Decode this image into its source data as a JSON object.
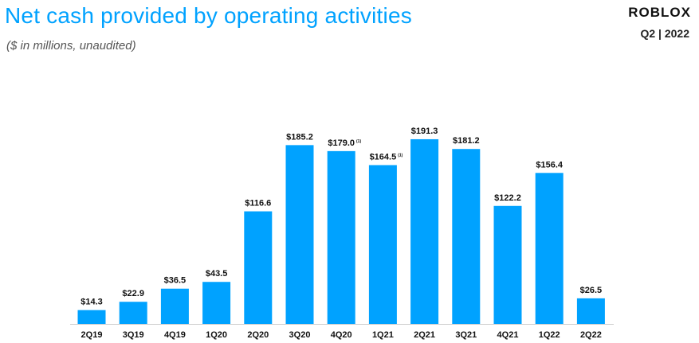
{
  "header": {
    "title": "Net cash provided by operating activities",
    "subtitle": "($ in millions,  unaudited)",
    "logo": "ROBLOX",
    "period": "Q2 | 2022"
  },
  "colors": {
    "bar": "#00a2ff",
    "title": "#00a2ff",
    "axis": "#cccccc"
  },
  "chart_data": {
    "type": "bar",
    "title": "Net cash provided by operating activities",
    "xlabel": "",
    "ylabel": "",
    "ylim": [
      0,
      200
    ],
    "grid": false,
    "categories": [
      "2Q19",
      "3Q19",
      "4Q19",
      "1Q20",
      "2Q20",
      "3Q20",
      "4Q20",
      "1Q21",
      "2Q21",
      "3Q21",
      "4Q21",
      "1Q22",
      "2Q22"
    ],
    "values": [
      14.3,
      22.9,
      36.5,
      43.5,
      116.6,
      185.2,
      179.0,
      164.5,
      191.3,
      181.2,
      122.2,
      156.4,
      26.5
    ],
    "labels": [
      "$14.3",
      "$22.9",
      "$36.5",
      "$43.5",
      "$116.6",
      "$185.2",
      "$179.0",
      "$164.5",
      "$191.3",
      "$181.2",
      "$122.2",
      "$156.4",
      "$26.5"
    ],
    "footnotes": [
      "",
      "",
      "",
      "",
      "",
      "",
      "(1)",
      "(1)",
      "",
      "",
      "",
      "",
      ""
    ]
  }
}
